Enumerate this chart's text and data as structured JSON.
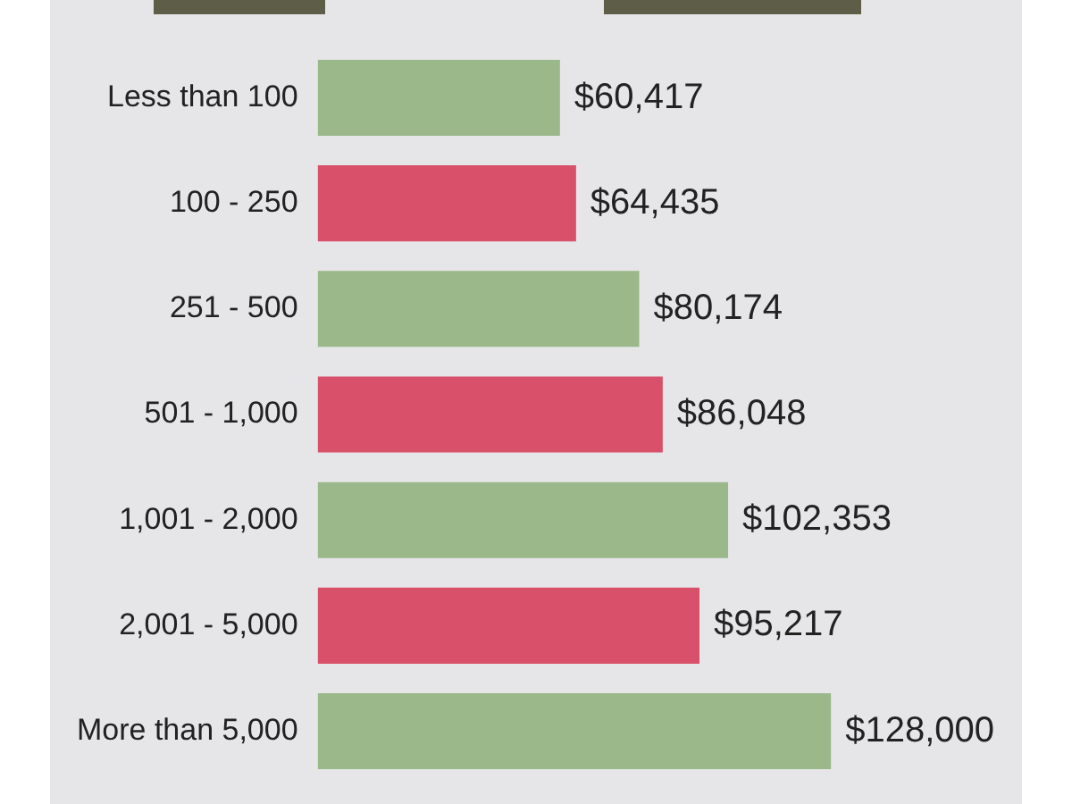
{
  "chart_data": {
    "type": "bar",
    "orientation": "horizontal",
    "categories": [
      "Less than 100",
      "100 - 250",
      "251 - 500",
      "501 - 1,000",
      "1,001 - 2,000",
      "2,001 - 5,000",
      "More than 5,000"
    ],
    "values": [
      60417,
      64435,
      80174,
      86048,
      102353,
      95217,
      128000
    ],
    "colors": [
      "#9ab88a",
      "#d9506a",
      "#9ab88a",
      "#d9506a",
      "#9ab88a",
      "#d9506a",
      "#9ab88a"
    ],
    "value_labels": [
      "$60,417",
      "$64,435",
      "$80,174",
      "$86,048",
      "$102,353",
      "$95,217",
      "$128,000"
    ]
  }
}
